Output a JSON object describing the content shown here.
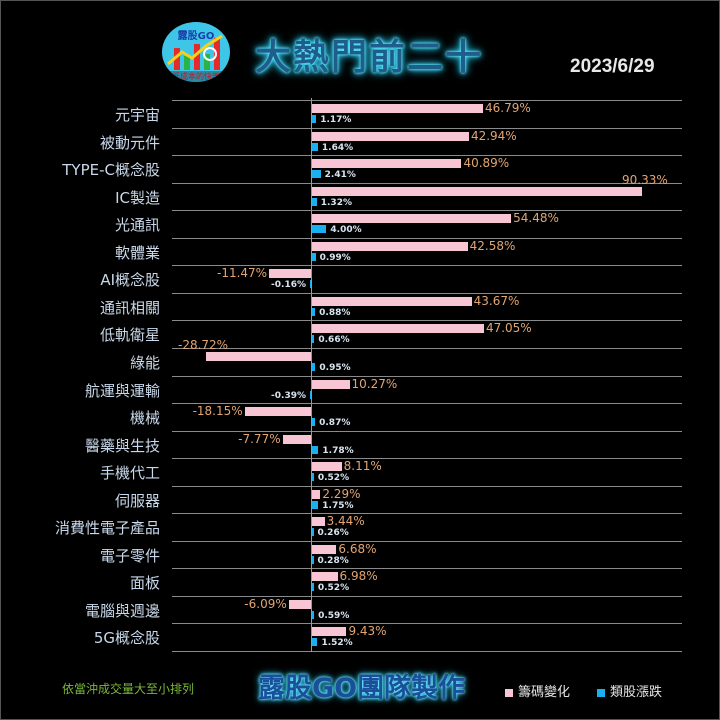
{
  "header": {
    "logo_text": "露股GO",
    "logo_footer": "低成本的快樂",
    "title": "大熱門前二十",
    "date": "2023/6/29"
  },
  "footer": {
    "note": "依當沖成交量大至小排列",
    "team": "露股GO團隊製作",
    "legend": [
      {
        "label": "籌碼變化",
        "color": "#f7c5d3"
      },
      {
        "label": "類股漲跌",
        "color": "#1ab0ef"
      }
    ]
  },
  "chart_data": {
    "type": "bar",
    "orientation": "horizontal",
    "title": "大熱門前二十",
    "categories": [
      "元宇宙",
      "被動元件",
      "TYPE-C概念股",
      "IC製造",
      "光通訊",
      "軟體業",
      "AI概念股",
      "通訊相關",
      "低軌衛星",
      "綠能",
      "航運與運輸",
      "機械",
      "醫藥與生技",
      "手機代工",
      "伺服器",
      "消費性電子產品",
      "電子零件",
      "面板",
      "電腦與週邊",
      "5G概念股"
    ],
    "series": [
      {
        "name": "籌碼變化",
        "color": "#f7c5d3",
        "values": [
          46.79,
          42.94,
          40.89,
          90.33,
          54.48,
          42.58,
          -11.47,
          43.67,
          47.05,
          -28.72,
          10.27,
          -18.15,
          -7.77,
          8.11,
          2.29,
          3.44,
          6.68,
          6.98,
          -6.09,
          9.43
        ]
      },
      {
        "name": "類股漲跌",
        "color": "#1ab0ef",
        "values": [
          1.17,
          1.64,
          2.41,
          1.32,
          4.0,
          0.99,
          -0.16,
          0.88,
          0.66,
          0.95,
          -0.39,
          0.87,
          1.78,
          0.52,
          1.75,
          0.26,
          0.28,
          0.52,
          0.59,
          1.52
        ]
      }
    ],
    "pink_labels": [
      "46.79%",
      "42.94%",
      "40.89%",
      "90.33%",
      "54.48%",
      "42.58%",
      "-11.47%",
      "43.67%",
      "47.05%",
      "-28.72%",
      "10.27%",
      "-18.15%",
      "-7.77%",
      "8.11%",
      "2.29%",
      "3.44%",
      "6.68%",
      "6.98%",
      "-6.09%",
      "9.43%"
    ],
    "blue_labels": [
      "1.17%",
      "1.64%",
      "2.41%",
      "1.32%",
      "4.00%",
      "0.99%",
      "-0.16%",
      "0.88%",
      "0.66%",
      "0.95%",
      "-0.39%",
      "0.87%",
      "1.78%",
      "0.52%",
      "1.75%",
      "0.26%",
      "0.28%",
      "0.52%",
      "0.59%",
      "1.52%"
    ],
    "xlabel": "",
    "ylabel": "",
    "grid": true,
    "legend_position": "bottom-right",
    "sort_note": "依當沖成交量大至小排列"
  }
}
